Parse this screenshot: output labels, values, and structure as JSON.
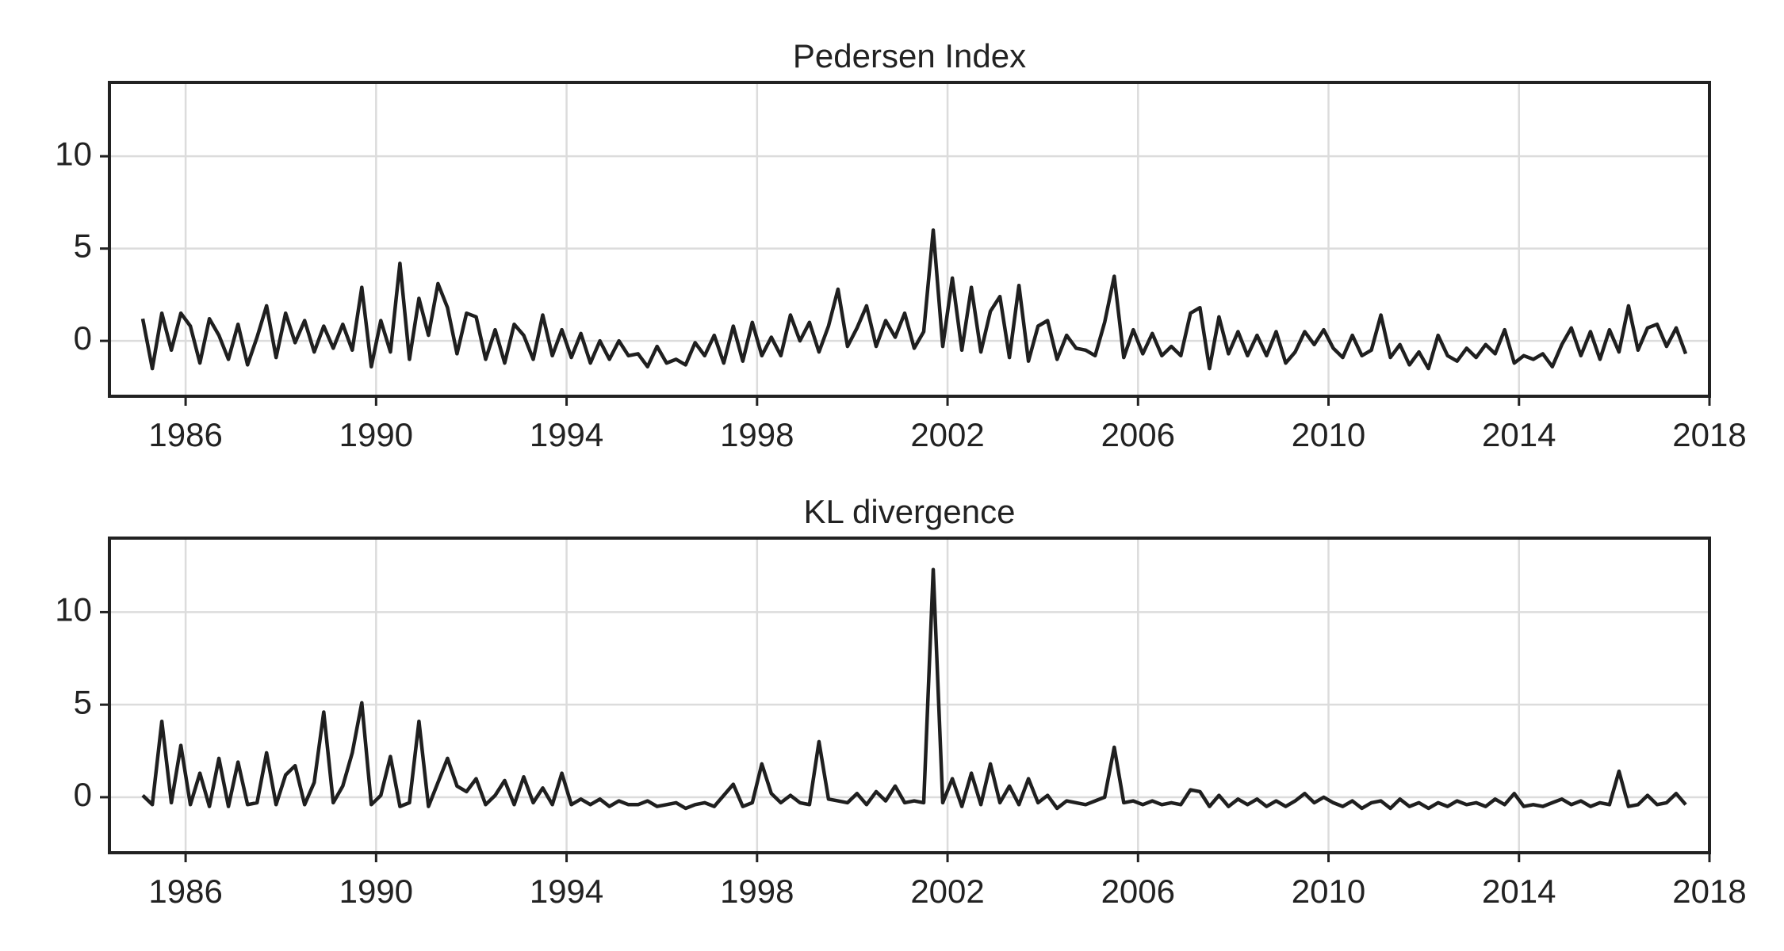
{
  "chart_data": [
    {
      "type": "line",
      "title": "Pedersen Index",
      "x": [
        1985.1,
        1985.3,
        1985.5,
        1985.7,
        1985.9,
        1986.1,
        1986.3,
        1986.5,
        1986.7,
        1986.9,
        1987.1,
        1987.3,
        1987.5,
        1987.7,
        1987.9,
        1988.1,
        1988.3,
        1988.5,
        1988.7,
        1988.9,
        1989.1,
        1989.3,
        1989.5,
        1989.7,
        1989.9,
        1990.1,
        1990.3,
        1990.5,
        1990.7,
        1990.9,
        1991.1,
        1991.3,
        1991.5,
        1991.7,
        1991.9,
        1992.1,
        1992.3,
        1992.5,
        1992.7,
        1992.9,
        1993.1,
        1993.3,
        1993.5,
        1993.7,
        1993.9,
        1994.1,
        1994.3,
        1994.5,
        1994.7,
        1994.9,
        1995.1,
        1995.3,
        1995.5,
        1995.7,
        1995.9,
        1996.1,
        1996.3,
        1996.5,
        1996.7,
        1996.9,
        1997.1,
        1997.3,
        1997.5,
        1997.7,
        1997.9,
        1998.1,
        1998.3,
        1998.5,
        1998.7,
        1998.9,
        1999.1,
        1999.3,
        1999.5,
        1999.7,
        1999.9,
        2000.1,
        2000.3,
        2000.5,
        2000.7,
        2000.9,
        2001.1,
        2001.3,
        2001.5,
        2001.7,
        2001.9,
        2002.1,
        2002.3,
        2002.5,
        2002.7,
        2002.9,
        2003.1,
        2003.3,
        2003.5,
        2003.7,
        2003.9,
        2004.1,
        2004.3,
        2004.5,
        2004.7,
        2004.9,
        2005.1,
        2005.3,
        2005.5,
        2005.7,
        2005.9,
        2006.1,
        2006.3,
        2006.5,
        2006.7,
        2006.9,
        2007.1,
        2007.3,
        2007.5,
        2007.7,
        2007.9,
        2008.1,
        2008.3,
        2008.5,
        2008.7,
        2008.9,
        2009.1,
        2009.3,
        2009.5,
        2009.7,
        2009.9,
        2010.1,
        2010.3,
        2010.5,
        2010.7,
        2010.9,
        2011.1,
        2011.3,
        2011.5,
        2011.7,
        2011.9,
        2012.1,
        2012.3,
        2012.5,
        2012.7,
        2012.9,
        2013.1,
        2013.3,
        2013.5,
        2013.7,
        2013.9,
        2014.1,
        2014.3,
        2014.5,
        2014.7,
        2014.9,
        2015.1,
        2015.3,
        2015.5,
        2015.7,
        2015.9,
        2016.1,
        2016.3,
        2016.5,
        2016.7,
        2016.9,
        2017.1,
        2017.3,
        2017.5
      ],
      "series": [
        {
          "color": "#1f1f1f",
          "values": [
            1.2,
            -1.5,
            1.5,
            -0.5,
            1.5,
            0.8,
            -1.2,
            1.2,
            0.3,
            -1.0,
            0.9,
            -1.3,
            0.2,
            1.9,
            -0.9,
            1.5,
            -0.1,
            1.1,
            -0.6,
            0.8,
            -0.4,
            0.9,
            -0.5,
            2.9,
            -1.4,
            1.1,
            -0.6,
            4.2,
            -1.0,
            2.3,
            0.3,
            3.1,
            1.8,
            -0.7,
            1.5,
            1.3,
            -1.0,
            0.6,
            -1.2,
            0.9,
            0.3,
            -1.0,
            1.4,
            -0.8,
            0.6,
            -0.9,
            0.4,
            -1.2,
            0.0,
            -1.0,
            0.0,
            -0.8,
            -0.7,
            -1.4,
            -0.3,
            -1.2,
            -1.0,
            -1.3,
            -0.1,
            -0.8,
            0.3,
            -1.2,
            0.8,
            -1.1,
            1.0,
            -0.8,
            0.2,
            -0.8,
            1.4,
            0.0,
            1.0,
            -0.6,
            0.8,
            2.8,
            -0.3,
            0.7,
            1.9,
            -0.3,
            1.1,
            0.2,
            1.5,
            -0.4,
            0.5,
            6.0,
            -0.3,
            3.4,
            -0.5,
            2.9,
            -0.6,
            1.6,
            2.4,
            -0.9,
            3.0,
            -1.1,
            0.8,
            1.1,
            -1.0,
            0.3,
            -0.4,
            -0.5,
            -0.8,
            1.0,
            3.5,
            -0.9,
            0.6,
            -0.7,
            0.4,
            -0.8,
            -0.3,
            -0.8,
            1.5,
            1.8,
            -1.5,
            1.3,
            -0.7,
            0.5,
            -0.8,
            0.3,
            -0.8,
            0.5,
            -1.2,
            -0.6,
            0.5,
            -0.2,
            0.6,
            -0.4,
            -0.9,
            0.3,
            -0.8,
            -0.5,
            1.4,
            -0.9,
            -0.2,
            -1.3,
            -0.6,
            -1.5,
            0.3,
            -0.8,
            -1.1,
            -0.4,
            -0.9,
            -0.2,
            -0.7,
            0.6,
            -1.2,
            -0.8,
            -1.0,
            -0.7,
            -1.4,
            -0.2,
            0.7,
            -0.8,
            0.5,
            -1.0,
            0.6,
            -0.6,
            1.9,
            -0.5,
            0.7,
            0.9,
            -0.3,
            0.7,
            -0.7
          ]
        }
      ],
      "xlim": [
        1984.4,
        2018
      ],
      "xticks": [
        1986,
        1990,
        1994,
        1998,
        2002,
        2006,
        2010,
        2014,
        2018
      ],
      "ylim": [
        -3,
        14
      ],
      "yticks": [
        0,
        5,
        10
      ],
      "grid": true
    },
    {
      "type": "line",
      "title": "KL divergence",
      "x": [
        1985.1,
        1985.3,
        1985.5,
        1985.7,
        1985.9,
        1986.1,
        1986.3,
        1986.5,
        1986.7,
        1986.9,
        1987.1,
        1987.3,
        1987.5,
        1987.7,
        1987.9,
        1988.1,
        1988.3,
        1988.5,
        1988.7,
        1988.9,
        1989.1,
        1989.3,
        1989.5,
        1989.7,
        1989.9,
        1990.1,
        1990.3,
        1990.5,
        1990.7,
        1990.9,
        1991.1,
        1991.3,
        1991.5,
        1991.7,
        1991.9,
        1992.1,
        1992.3,
        1992.5,
        1992.7,
        1992.9,
        1993.1,
        1993.3,
        1993.5,
        1993.7,
        1993.9,
        1994.1,
        1994.3,
        1994.5,
        1994.7,
        1994.9,
        1995.1,
        1995.3,
        1995.5,
        1995.7,
        1995.9,
        1996.1,
        1996.3,
        1996.5,
        1996.7,
        1996.9,
        1997.1,
        1997.3,
        1997.5,
        1997.7,
        1997.9,
        1998.1,
        1998.3,
        1998.5,
        1998.7,
        1998.9,
        1999.1,
        1999.3,
        1999.5,
        1999.7,
        1999.9,
        2000.1,
        2000.3,
        2000.5,
        2000.7,
        2000.9,
        2001.1,
        2001.3,
        2001.5,
        2001.7,
        2001.9,
        2002.1,
        2002.3,
        2002.5,
        2002.7,
        2002.9,
        2003.1,
        2003.3,
        2003.5,
        2003.7,
        2003.9,
        2004.1,
        2004.3,
        2004.5,
        2004.7,
        2004.9,
        2005.1,
        2005.3,
        2005.5,
        2005.7,
        2005.9,
        2006.1,
        2006.3,
        2006.5,
        2006.7,
        2006.9,
        2007.1,
        2007.3,
        2007.5,
        2007.7,
        2007.9,
        2008.1,
        2008.3,
        2008.5,
        2008.7,
        2008.9,
        2009.1,
        2009.3,
        2009.5,
        2009.7,
        2009.9,
        2010.1,
        2010.3,
        2010.5,
        2010.7,
        2010.9,
        2011.1,
        2011.3,
        2011.5,
        2011.7,
        2011.9,
        2012.1,
        2012.3,
        2012.5,
        2012.7,
        2012.9,
        2013.1,
        2013.3,
        2013.5,
        2013.7,
        2013.9,
        2014.1,
        2014.3,
        2014.5,
        2014.7,
        2014.9,
        2015.1,
        2015.3,
        2015.5,
        2015.7,
        2015.9,
        2016.1,
        2016.3,
        2016.5,
        2016.7,
        2016.9,
        2017.1,
        2017.3,
        2017.5
      ],
      "series": [
        {
          "color": "#1f1f1f",
          "values": [
            0.1,
            -0.4,
            4.1,
            -0.3,
            2.8,
            -0.4,
            1.3,
            -0.5,
            2.1,
            -0.5,
            1.9,
            -0.4,
            -0.3,
            2.4,
            -0.4,
            1.2,
            1.7,
            -0.4,
            0.8,
            4.6,
            -0.3,
            0.6,
            2.4,
            5.1,
            -0.4,
            0.1,
            2.2,
            -0.5,
            -0.3,
            4.1,
            -0.5,
            0.8,
            2.1,
            0.6,
            0.3,
            1.0,
            -0.4,
            0.1,
            0.9,
            -0.4,
            1.1,
            -0.3,
            0.5,
            -0.4,
            1.3,
            -0.4,
            -0.1,
            -0.4,
            -0.1,
            -0.5,
            -0.2,
            -0.4,
            -0.4,
            -0.2,
            -0.5,
            -0.4,
            -0.3,
            -0.6,
            -0.4,
            -0.3,
            -0.5,
            0.1,
            0.7,
            -0.5,
            -0.3,
            1.8,
            0.2,
            -0.3,
            0.1,
            -0.3,
            -0.4,
            3.0,
            -0.1,
            -0.2,
            -0.3,
            0.2,
            -0.4,
            0.3,
            -0.2,
            0.6,
            -0.3,
            -0.2,
            -0.3,
            12.3,
            -0.3,
            1.0,
            -0.5,
            1.3,
            -0.4,
            1.8,
            -0.3,
            0.6,
            -0.4,
            1.0,
            -0.3,
            0.1,
            -0.6,
            -0.2,
            -0.3,
            -0.4,
            -0.2,
            0.0,
            2.7,
            -0.3,
            -0.2,
            -0.4,
            -0.2,
            -0.4,
            -0.3,
            -0.4,
            0.4,
            0.3,
            -0.5,
            0.1,
            -0.5,
            -0.1,
            -0.4,
            -0.1,
            -0.5,
            -0.2,
            -0.5,
            -0.2,
            0.2,
            -0.3,
            0.0,
            -0.3,
            -0.5,
            -0.2,
            -0.6,
            -0.3,
            -0.2,
            -0.6,
            -0.1,
            -0.5,
            -0.3,
            -0.6,
            -0.3,
            -0.5,
            -0.2,
            -0.4,
            -0.3,
            -0.5,
            -0.1,
            -0.4,
            0.2,
            -0.5,
            -0.4,
            -0.5,
            -0.3,
            -0.1,
            -0.4,
            -0.2,
            -0.5,
            -0.3,
            -0.4,
            1.4,
            -0.5,
            -0.4,
            0.1,
            -0.4,
            -0.3,
            0.2,
            -0.4
          ]
        }
      ],
      "xlim": [
        1984.4,
        2018
      ],
      "xticks": [
        1986,
        1990,
        1994,
        1998,
        2002,
        2006,
        2010,
        2014,
        2018
      ],
      "ylim": [
        -3,
        14
      ],
      "yticks": [
        0,
        5,
        10
      ],
      "grid": true
    }
  ]
}
